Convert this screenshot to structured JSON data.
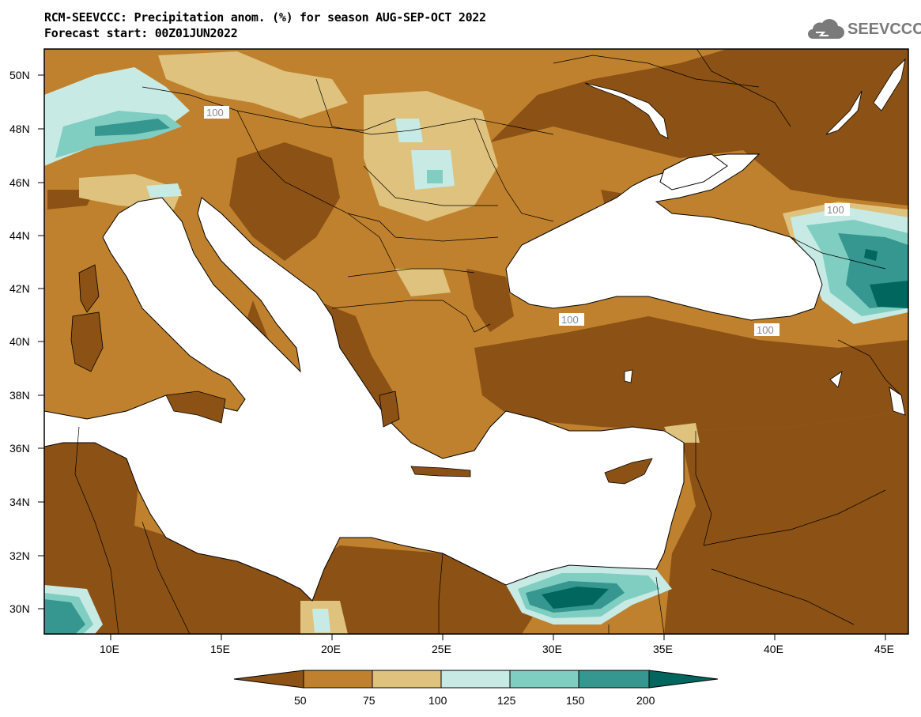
{
  "header": {
    "title_line1": "RCM-SEEVCCC: Precipitation anom. (%) for season AUG-SEP-OCT 2022",
    "title_line2": "Forecast start: 00Z01JUN2022",
    "logo_text": "SEEVCCC"
  },
  "axes": {
    "x_ticks": [
      "10E",
      "15E",
      "20E",
      "25E",
      "30E",
      "35E",
      "40E",
      "45E"
    ],
    "y_ticks": [
      "50N",
      "48N",
      "46N",
      "44N",
      "42N",
      "40N",
      "38N",
      "36N",
      "34N",
      "32N",
      "30N"
    ]
  },
  "contour_labels": [
    "100",
    "100",
    "100",
    "100"
  ],
  "legend": {
    "labels": [
      "50",
      "75",
      "100",
      "125",
      "150",
      "200"
    ],
    "colors": [
      "#8c5114",
      "#bf812d",
      "#dfc27d",
      "#c7eae5",
      "#80cdc1",
      "#35978f",
      "#01665e"
    ]
  },
  "colors": {
    "sea": "#ffffff",
    "very_dry": "#8c5114",
    "dry": "#bf812d",
    "slightly_dry": "#dfc27d",
    "slightly_wet": "#c7eae5",
    "wet": "#80cdc1",
    "very_wet": "#35978f",
    "extreme_wet": "#01665e"
  }
}
